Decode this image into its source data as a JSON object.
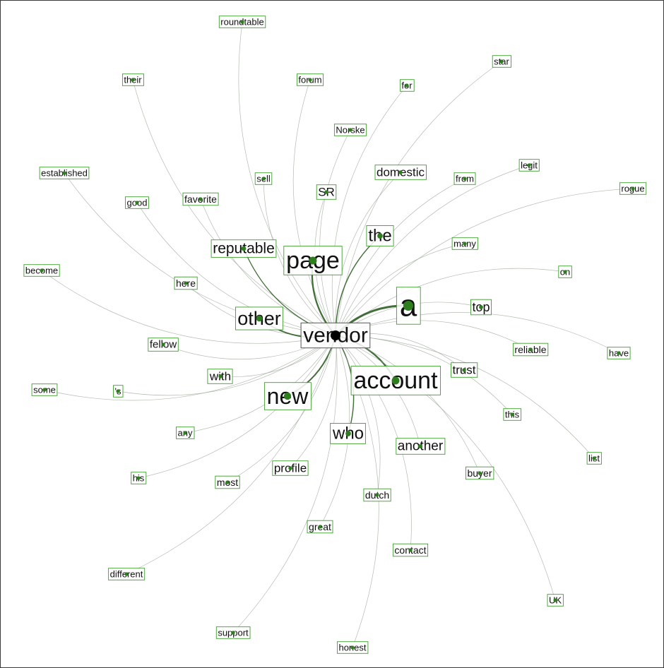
{
  "colors": {
    "edge": "#9aa595",
    "edge_strong": "#2f5f23",
    "node": "#2e7d1e",
    "box": "#3f9d2e",
    "center_box": "#555555",
    "text": "#111111",
    "background": "#ffffff"
  },
  "center": {
    "word": "vendor"
  },
  "words": [
    {
      "id": "roundtable",
      "text": "roundtable",
      "weight": 1
    },
    {
      "id": "star",
      "text": "star",
      "weight": 1
    },
    {
      "id": "their",
      "text": "their",
      "weight": 1
    },
    {
      "id": "forum",
      "text": "forum",
      "weight": 1
    },
    {
      "id": "for",
      "text": "for",
      "weight": 1
    },
    {
      "id": "Norske",
      "text": "Norske",
      "weight": 1
    },
    {
      "id": "established",
      "text": "established",
      "weight": 1
    },
    {
      "id": "sell",
      "text": "sell",
      "weight": 1
    },
    {
      "id": "domestic",
      "text": "domestic",
      "weight": 1.4
    },
    {
      "id": "legit",
      "text": "legit",
      "weight": 1
    },
    {
      "id": "from",
      "text": "from",
      "weight": 1
    },
    {
      "id": "rogue",
      "text": "rogue",
      "weight": 1
    },
    {
      "id": "good",
      "text": "good",
      "weight": 1
    },
    {
      "id": "favorite",
      "text": "favorite",
      "weight": 1.2
    },
    {
      "id": "SR",
      "text": "SR",
      "weight": 1.4
    },
    {
      "id": "the",
      "text": "the",
      "weight": 2.2
    },
    {
      "id": "many",
      "text": "many",
      "weight": 1
    },
    {
      "id": "reputable",
      "text": "reputable",
      "weight": 2
    },
    {
      "id": "page",
      "text": "page",
      "weight": 3.4
    },
    {
      "id": "become",
      "text": "become",
      "weight": 1
    },
    {
      "id": "on",
      "text": "on",
      "weight": 1
    },
    {
      "id": "here",
      "text": "here",
      "weight": 1.2
    },
    {
      "id": "a",
      "text": "a",
      "weight": 4.5
    },
    {
      "id": "top",
      "text": "top",
      "weight": 1.6
    },
    {
      "id": "other",
      "text": "other",
      "weight": 2.8
    },
    {
      "id": "fellow",
      "text": "fellow",
      "weight": 1.3
    },
    {
      "id": "reliable",
      "text": "reliable",
      "weight": 1.2
    },
    {
      "id": "have",
      "text": "have",
      "weight": 1
    },
    {
      "id": "with",
      "text": "with",
      "weight": 1.5
    },
    {
      "id": "trust",
      "text": "trust",
      "weight": 1.5
    },
    {
      "id": "account",
      "text": "account",
      "weight": 3.4
    },
    {
      "id": "some",
      "text": "some",
      "weight": 1
    },
    {
      "id": "'s",
      "text": "'s",
      "weight": 1
    },
    {
      "id": "new",
      "text": "new",
      "weight": 3
    },
    {
      "id": "this",
      "text": "this",
      "weight": 1
    },
    {
      "id": "any",
      "text": "any",
      "weight": 1
    },
    {
      "id": "who",
      "text": "who",
      "weight": 2.2
    },
    {
      "id": "another",
      "text": "another",
      "weight": 1.8
    },
    {
      "id": "list",
      "text": "list",
      "weight": 1
    },
    {
      "id": "his",
      "text": "his",
      "weight": 1
    },
    {
      "id": "most",
      "text": "most",
      "weight": 1.1
    },
    {
      "id": "profile",
      "text": "profile",
      "weight": 1.6
    },
    {
      "id": "buyer",
      "text": "buyer",
      "weight": 1.2
    },
    {
      "id": "dutch",
      "text": "dutch",
      "weight": 1.1
    },
    {
      "id": "great",
      "text": "great",
      "weight": 1.1
    },
    {
      "id": "contact",
      "text": "contact",
      "weight": 1.1
    },
    {
      "id": "different",
      "text": "different",
      "weight": 1
    },
    {
      "id": "UK",
      "text": "UK",
      "weight": 1
    },
    {
      "id": "support",
      "text": "support",
      "weight": 1
    },
    {
      "id": "honest",
      "text": "honest",
      "weight": 1
    }
  ]
}
